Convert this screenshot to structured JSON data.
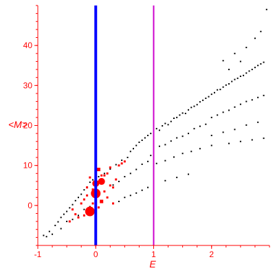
{
  "chart_data": {
    "type": "scatter",
    "title": "",
    "xlabel": "E",
    "ylabel": "<M>",
    "xlim": [
      -1,
      3
    ],
    "ylim": [
      -10,
      50
    ],
    "xticks": [
      -1,
      0,
      1,
      2
    ],
    "yticks": [
      0,
      10,
      20,
      30,
      40
    ],
    "grid": false,
    "legend": "none",
    "vertical_lines": [
      {
        "x": 0,
        "color": "#0000ff"
      },
      {
        "x": 1,
        "color": "#cc00cc"
      }
    ],
    "colors": {
      "axis": "#ff0000",
      "black_points": "#000000",
      "red_points": "#ff0000"
    },
    "series": [
      {
        "values": [
          [
            -0.8,
            -6.5
          ],
          [
            -0.75,
            -7.2
          ],
          [
            -0.7,
            -5.0
          ],
          [
            -0.65,
            -4.1
          ],
          [
            -0.6,
            -3.0
          ],
          [
            -0.55,
            -2.2
          ],
          [
            -0.5,
            -1.5
          ],
          [
            -0.45,
            -0.6
          ],
          [
            -0.4,
            0.2
          ],
          [
            -0.35,
            1.2
          ],
          [
            -0.3,
            2.0
          ],
          [
            -0.25,
            2.8
          ],
          [
            -0.2,
            3.9
          ],
          [
            -0.15,
            4.6
          ],
          [
            -0.1,
            5.8
          ],
          [
            -0.05,
            6.4
          ],
          [
            -0.9,
            -7.5
          ],
          [
            -0.85,
            -7.8
          ],
          [
            -0.6,
            -5.8
          ],
          [
            -0.5,
            -4.0
          ],
          [
            -0.4,
            -3.5
          ],
          [
            -0.3,
            -2.5
          ],
          [
            -0.2,
            -1.0
          ],
          [
            -0.1,
            -0.3
          ],
          [
            0.05,
            7.2
          ],
          [
            0.15,
            8.0
          ],
          [
            0.25,
            9.1
          ],
          [
            0.35,
            10.2
          ],
          [
            0.45,
            11.3
          ],
          [
            0.55,
            12.0
          ],
          [
            0.6,
            13.5
          ],
          [
            0.65,
            14.2
          ],
          [
            0.7,
            15.0
          ],
          [
            0.75,
            15.8
          ],
          [
            0.8,
            16.3
          ],
          [
            0.85,
            16.9
          ],
          [
            0.9,
            17.5
          ],
          [
            0.95,
            18.0
          ],
          [
            0.3,
            5.1
          ],
          [
            0.4,
            6.0
          ],
          [
            0.5,
            7.2
          ],
          [
            0.6,
            8.0
          ],
          [
            0.7,
            9.0
          ],
          [
            0.8,
            10.3
          ],
          [
            0.9,
            11.0
          ],
          [
            0.95,
            12.5
          ],
          [
            0.3,
            0.5
          ],
          [
            0.4,
            1.0
          ],
          [
            0.5,
            2.0
          ],
          [
            0.6,
            2.5
          ],
          [
            0.7,
            3.1
          ],
          [
            0.8,
            3.8
          ],
          [
            0.9,
            4.5
          ],
          [
            1.0,
            18.3
          ],
          [
            1.05,
            19.2
          ],
          [
            1.1,
            18.8
          ],
          [
            1.15,
            19.9
          ],
          [
            1.2,
            20.5
          ],
          [
            1.25,
            20.2
          ],
          [
            1.3,
            21.0
          ],
          [
            1.35,
            21.8
          ],
          [
            1.4,
            22.0
          ],
          [
            1.45,
            22.6
          ],
          [
            1.5,
            23.1
          ],
          [
            1.55,
            23.0
          ],
          [
            1.6,
            23.9
          ],
          [
            1.65,
            24.5
          ],
          [
            1.7,
            24.8
          ],
          [
            1.75,
            25.2
          ],
          [
            1.8,
            25.9
          ],
          [
            1.85,
            26.3
          ],
          [
            1.9,
            26.8
          ],
          [
            1.95,
            27.2
          ],
          [
            1.0,
            14.0
          ],
          [
            1.1,
            14.8
          ],
          [
            1.2,
            15.2
          ],
          [
            1.3,
            16.1
          ],
          [
            1.4,
            16.9
          ],
          [
            1.5,
            17.3
          ],
          [
            1.6,
            18.0
          ],
          [
            1.7,
            19.2
          ],
          [
            1.8,
            19.8
          ],
          [
            1.9,
            20.3
          ],
          [
            1.05,
            10.5
          ],
          [
            1.2,
            11.2
          ],
          [
            1.35,
            12.1
          ],
          [
            1.5,
            13.0
          ],
          [
            1.65,
            13.5
          ],
          [
            1.8,
            14.2
          ],
          [
            1.0,
            5.0
          ],
          [
            1.2,
            6.2
          ],
          [
            1.4,
            7.0
          ],
          [
            1.6,
            7.8
          ],
          [
            2.0,
            27.8
          ],
          [
            2.05,
            28.2
          ],
          [
            2.1,
            28.9
          ],
          [
            2.15,
            29.0
          ],
          [
            2.2,
            29.6
          ],
          [
            2.25,
            30.1
          ],
          [
            2.3,
            30.4
          ],
          [
            2.35,
            31.0
          ],
          [
            2.4,
            31.5
          ],
          [
            2.45,
            31.8
          ],
          [
            2.5,
            32.3
          ],
          [
            2.55,
            32.5
          ],
          [
            2.6,
            33.1
          ],
          [
            2.65,
            33.6
          ],
          [
            2.7,
            34.0
          ],
          [
            2.75,
            34.5
          ],
          [
            2.8,
            35.0
          ],
          [
            2.85,
            35.4
          ],
          [
            2.9,
            35.8
          ],
          [
            2.0,
            22.0
          ],
          [
            2.1,
            22.6
          ],
          [
            2.2,
            23.3
          ],
          [
            2.3,
            23.8
          ],
          [
            2.4,
            24.6
          ],
          [
            2.5,
            25.3
          ],
          [
            2.6,
            26.0
          ],
          [
            2.7,
            26.4
          ],
          [
            2.8,
            27.0
          ],
          [
            2.9,
            27.5
          ],
          [
            2.0,
            17.5
          ],
          [
            2.2,
            18.3
          ],
          [
            2.4,
            19.0
          ],
          [
            2.6,
            20.1
          ],
          [
            2.8,
            20.8
          ],
          [
            2.0,
            15.0
          ],
          [
            2.3,
            15.5
          ],
          [
            2.5,
            16.0
          ],
          [
            2.7,
            16.4
          ],
          [
            2.9,
            16.8
          ],
          [
            2.2,
            36.2
          ],
          [
            2.4,
            38.0
          ],
          [
            2.6,
            39.5
          ],
          [
            2.75,
            41.8
          ],
          [
            2.85,
            43.5
          ],
          [
            2.95,
            49.0
          ],
          [
            2.3,
            34.0
          ],
          [
            2.5,
            36.0
          ]
        ]
      },
      {
        "values": [
          [
            -0.1,
            -1.5,
            4
          ],
          [
            0.0,
            3.0,
            4
          ],
          [
            0.1,
            6.0,
            3
          ],
          [
            0.0,
            5.5,
            3
          ],
          [
            0.1,
            1.0,
            2
          ],
          [
            0.05,
            9.0,
            2
          ],
          [
            -0.05,
            4.0,
            1
          ],
          [
            -0.1,
            7.0,
            1
          ],
          [
            -0.15,
            2.5,
            1
          ],
          [
            -0.2,
            1.5,
            1
          ],
          [
            -0.15,
            4.5,
            1
          ],
          [
            -0.25,
            0.5,
            1
          ],
          [
            0.15,
            3.5,
            1
          ],
          [
            0.2,
            8.0,
            1
          ],
          [
            0.25,
            9.5,
            1
          ],
          [
            0.3,
            4.5,
            1
          ],
          [
            0.35,
            6.5,
            1
          ],
          [
            0.4,
            10.0,
            1
          ],
          [
            0.45,
            10.5,
            1
          ],
          [
            0.5,
            11.0,
            1
          ],
          [
            0.3,
            0.5,
            1
          ],
          [
            0.2,
            2.0,
            1
          ],
          [
            0.15,
            7.5,
            1
          ],
          [
            0.25,
            5.0,
            1
          ],
          [
            -0.3,
            -3.0,
            1
          ],
          [
            -0.35,
            -2.2,
            1
          ],
          [
            -0.45,
            -4.0,
            1
          ],
          [
            -0.4,
            -1.0,
            1
          ],
          [
            -0.2,
            -2.5,
            1
          ],
          [
            -0.05,
            0.5,
            1
          ],
          [
            0.05,
            -0.5,
            1
          ],
          [
            0.1,
            7.5,
            1
          ],
          [
            0.0,
            8.5,
            1
          ]
        ]
      }
    ]
  }
}
